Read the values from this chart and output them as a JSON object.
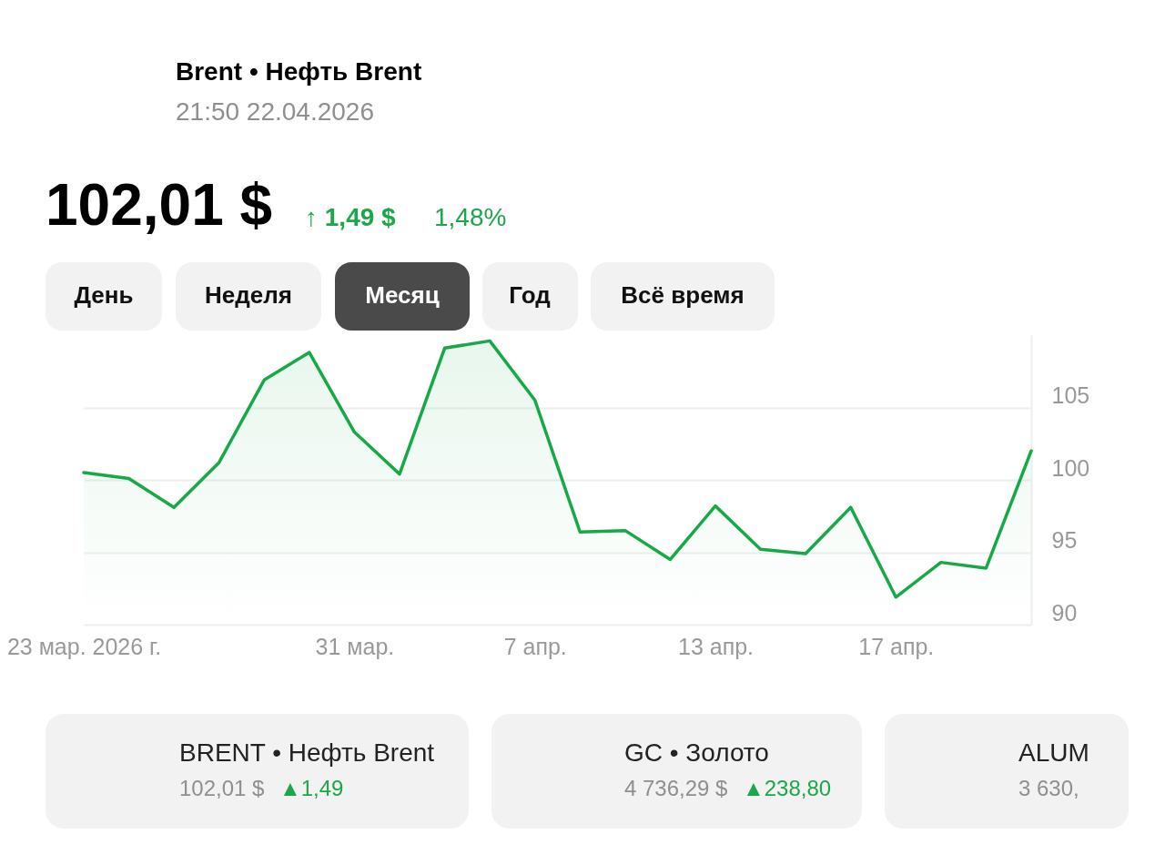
{
  "chart_data": {
    "type": "area",
    "title": "Brent • Нефть Brent",
    "subtitle": "21:50 22.04.2026",
    "categories": [
      "23 мар. 2026 г.",
      null,
      null,
      null,
      null,
      null,
      "31 мар.",
      null,
      null,
      null,
      "7 апр.",
      null,
      null,
      null,
      "13 апр.",
      null,
      null,
      null,
      "17 апр.",
      null,
      null,
      null
    ],
    "values": [
      100.5,
      100.1,
      98.1,
      101.2,
      106.9,
      108.8,
      103.3,
      100.4,
      109.1,
      109.6,
      105.5,
      96.4,
      96.5,
      94.5,
      98.2,
      95.2,
      94.9,
      98.1,
      91.9,
      94.3,
      93.9,
      102.0
    ],
    "color": "#17a948",
    "ylim": [
      90,
      110
    ],
    "yticks": [
      90,
      95,
      100,
      105
    ],
    "grid": "y",
    "annotations": [
      "102,01 $",
      "↑ 1,49 $",
      "1,48%",
      "День",
      "Неделя",
      "Месяц",
      "Год",
      "Всё время",
      "BRENT • Нефть Brent",
      "102,01 $",
      "▲1,49",
      "GC • Золото",
      "4 736,29 $",
      "▲238,80",
      "ALUM",
      "3 630,"
    ]
  }
}
